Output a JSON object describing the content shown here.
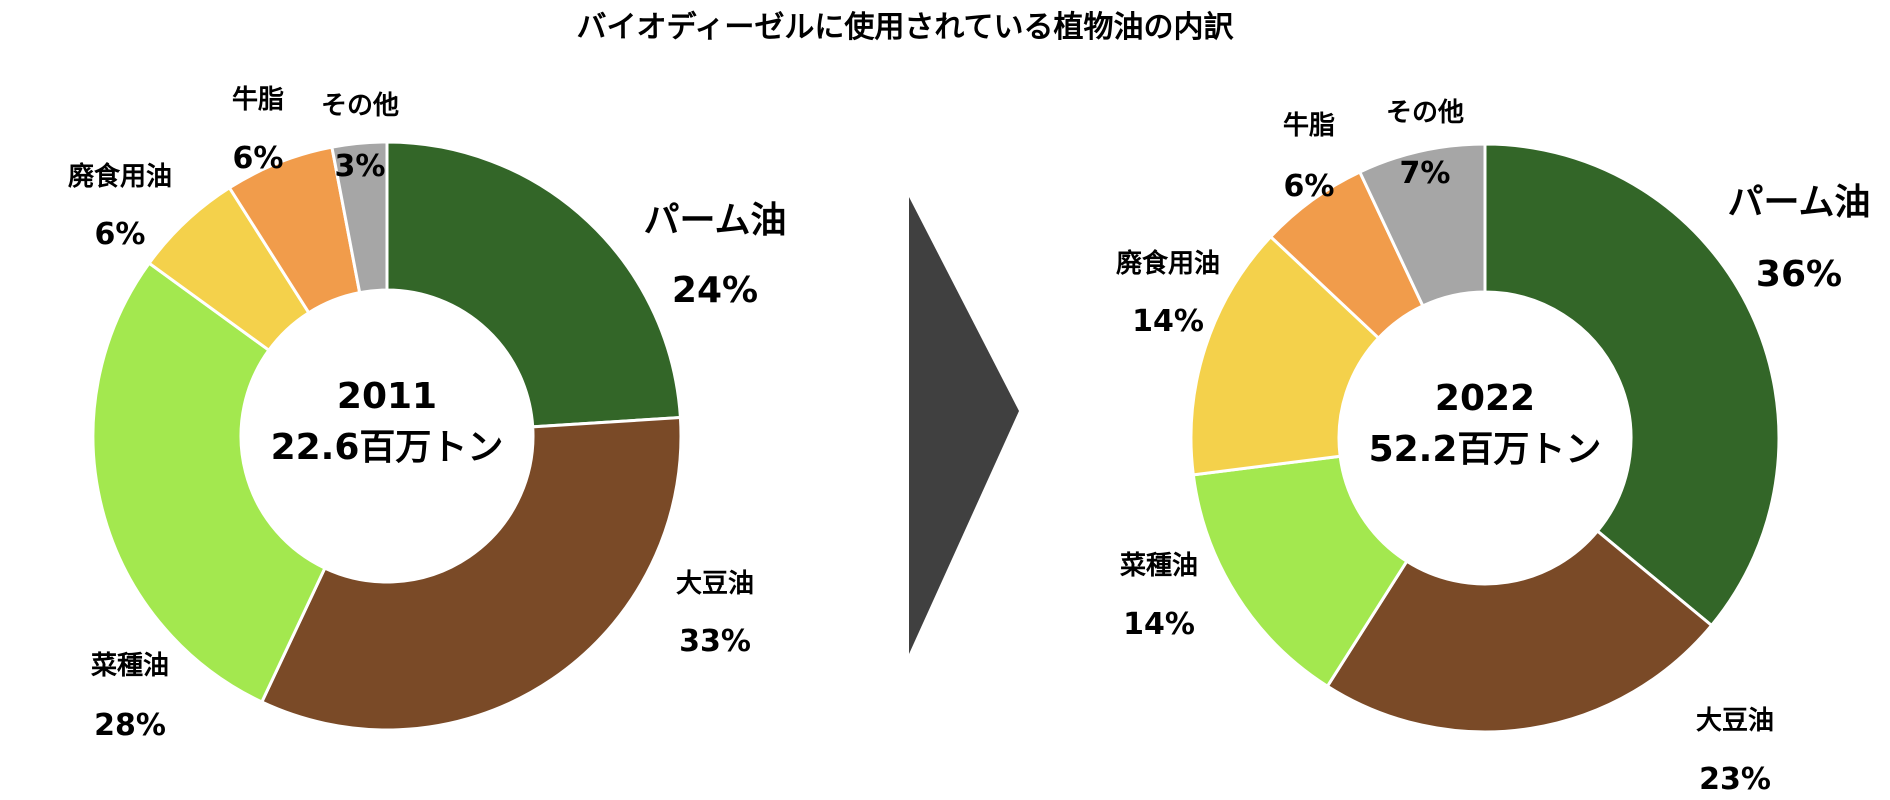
{
  "title": "バイオディーゼルに使用されている植物油の内訳",
  "chart_data": [
    {
      "type": "pie",
      "donut": true,
      "center_lines": [
        "2011",
        "22.6百万トン"
      ],
      "categories": [
        "パーム油",
        "大豆油",
        "菜種油",
        "廃食用油",
        "牛脂",
        "その他"
      ],
      "values": [
        24,
        33,
        28,
        6,
        6,
        3
      ],
      "value_labels": [
        "24%",
        "33%",
        "28%",
        "6%",
        "6%",
        "3%"
      ],
      "colors": [
        "#336628",
        "#7a4a27",
        "#a3e84f",
        "#f4d14b",
        "#f19c4b",
        "#a6a6a6"
      ]
    },
    {
      "type": "pie",
      "donut": true,
      "center_lines": [
        "2022",
        "52.2百万トン"
      ],
      "categories": [
        "パーム油",
        "大豆油",
        "菜種油",
        "廃食用油",
        "牛脂",
        "その他"
      ],
      "values": [
        36,
        23,
        14,
        14,
        6,
        7
      ],
      "value_labels": [
        "36%",
        "23%",
        "14%",
        "14%",
        "6%",
        "7%"
      ],
      "colors": [
        "#336628",
        "#7a4a27",
        "#a3e84f",
        "#f4d14b",
        "#f19c4b",
        "#a6a6a6"
      ]
    }
  ],
  "arrow_color": "#404040"
}
